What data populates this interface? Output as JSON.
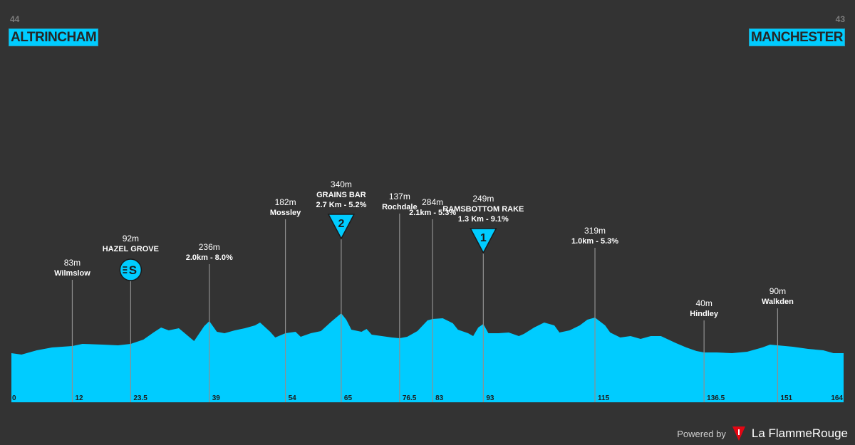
{
  "header": {
    "start_number": "44",
    "start_name": "ALTRINCHAM",
    "finish_number": "43",
    "finish_name": "MANCHESTER"
  },
  "footer": {
    "powered_by": "Powered by",
    "brand": "La FlammeRouge"
  },
  "colors": {
    "background": "#333333",
    "profile_fill": "#00ccff",
    "accent_box": "#00ccff",
    "brand_red": "#e30613"
  },
  "chart_data": {
    "type": "area",
    "xlim": [
      0,
      164
    ],
    "km_markers": [
      "0",
      "12",
      "23.5",
      "39",
      "54",
      "65",
      "76.5",
      "83",
      "93",
      "115",
      "136.5",
      "151",
      "164"
    ],
    "profile": [
      [
        0,
        14
      ],
      [
        2,
        12
      ],
      [
        5,
        18
      ],
      [
        8,
        22
      ],
      [
        12,
        24
      ],
      [
        14,
        27
      ],
      [
        18,
        26
      ],
      [
        21,
        25
      ],
      [
        23.5,
        27
      ],
      [
        26,
        33
      ],
      [
        28,
        43
      ],
      [
        29.5,
        50
      ],
      [
        31,
        46
      ],
      [
        33,
        49
      ],
      [
        34.5,
        40
      ],
      [
        36,
        31
      ],
      [
        38,
        52
      ],
      [
        39,
        59
      ],
      [
        40.5,
        44
      ],
      [
        42,
        42
      ],
      [
        44,
        46
      ],
      [
        46,
        49
      ],
      [
        48,
        53
      ],
      [
        49,
        57
      ],
      [
        51,
        44
      ],
      [
        52,
        36
      ],
      [
        54,
        42
      ],
      [
        56,
        44
      ],
      [
        57,
        37
      ],
      [
        59,
        42
      ],
      [
        61,
        45
      ],
      [
        63,
        58
      ],
      [
        65,
        70
      ],
      [
        66,
        61
      ],
      [
        67,
        47
      ],
      [
        69,
        44
      ],
      [
        70,
        48
      ],
      [
        71,
        40
      ],
      [
        73,
        38
      ],
      [
        75,
        36
      ],
      [
        76.5,
        35
      ],
      [
        78,
        37
      ],
      [
        80,
        45
      ],
      [
        82,
        60
      ],
      [
        83,
        62
      ],
      [
        85,
        63
      ],
      [
        87,
        56
      ],
      [
        88,
        47
      ],
      [
        90,
        42
      ],
      [
        91,
        38
      ],
      [
        92,
        50
      ],
      [
        93,
        55
      ],
      [
        94,
        42
      ],
      [
        96,
        42
      ],
      [
        98,
        43
      ],
      [
        100,
        38
      ],
      [
        101,
        41
      ],
      [
        103,
        50
      ],
      [
        105,
        57
      ],
      [
        107,
        53
      ],
      [
        108,
        43
      ],
      [
        110,
        46
      ],
      [
        112,
        53
      ],
      [
        113.5,
        61
      ],
      [
        115,
        64
      ],
      [
        117,
        53
      ],
      [
        118,
        43
      ],
      [
        120,
        36
      ],
      [
        122,
        38
      ],
      [
        124,
        34
      ],
      [
        126,
        38
      ],
      [
        128,
        38
      ],
      [
        131,
        28
      ],
      [
        133,
        22
      ],
      [
        135,
        17
      ],
      [
        136.5,
        15
      ],
      [
        139,
        15
      ],
      [
        142,
        14
      ],
      [
        145,
        16
      ],
      [
        148,
        22
      ],
      [
        149.5,
        26
      ],
      [
        151,
        25
      ],
      [
        154,
        23
      ],
      [
        157,
        20
      ],
      [
        160,
        18
      ],
      [
        162,
        14
      ],
      [
        164,
        14
      ]
    ],
    "labels": [
      {
        "km": 12,
        "altitude": "83m",
        "name": "Wilmslow",
        "line_top": 93,
        "caps": false
      },
      {
        "km": 23.5,
        "altitude": "92m",
        "name": "HAZEL GROVE",
        "line_top": 88,
        "caps": true,
        "badge": "sprint"
      },
      {
        "km": 39,
        "altitude": "236m",
        "name": "2.0km - 8.0%",
        "line_top": 80,
        "caps": true
      },
      {
        "km": 54,
        "altitude": "182m",
        "name": "Mossley",
        "line_top": 160,
        "caps": false
      },
      {
        "km": 65,
        "altitude": "340m",
        "name": "GRAINS BAR",
        "subtitle": "2.7 Km - 5.2%",
        "line_top": 105,
        "caps": true,
        "badge": "kom",
        "category": "2"
      },
      {
        "km": 76.5,
        "altitude": "137m",
        "name": "Rochdale",
        "line_top": 175,
        "caps": false
      },
      {
        "km": 83,
        "altitude": "284m",
        "name": "2.1km - 5.3%",
        "line_top": 140,
        "caps": true
      },
      {
        "km": 93,
        "altitude": "249m",
        "name": "RAMSBOTTOM RAKE",
        "subtitle": "1.3 Km - 9.1%",
        "line_top": 100,
        "caps": true,
        "badge": "kom",
        "category": "1"
      },
      {
        "km": 115,
        "altitude": "319m",
        "name": "1.0km - 5.3%",
        "line_top": 98,
        "caps": true
      },
      {
        "km": 136.5,
        "altitude": "40m",
        "name": "Hindley",
        "line_top": 45,
        "caps": false
      },
      {
        "km": 151,
        "altitude": "90m",
        "name": "Walkden",
        "line_top": 52,
        "caps": false
      }
    ]
  }
}
